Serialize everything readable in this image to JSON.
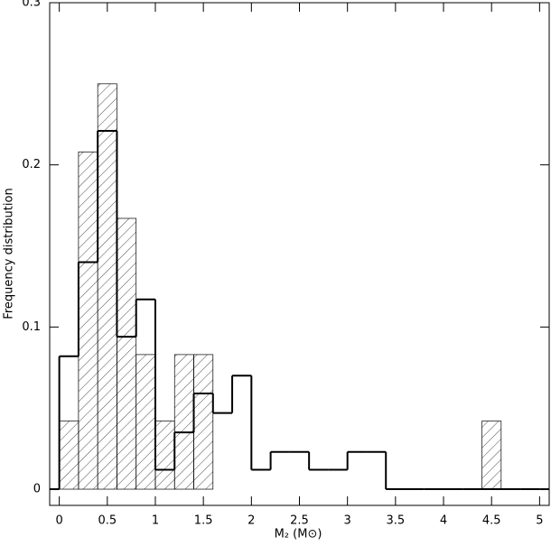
{
  "chart_data": {
    "type": "histogram",
    "xlabel": "M₂ (M⊙)",
    "ylabel": "Frequency distribution",
    "bins": [
      0,
      0.2,
      0.4,
      0.6,
      0.8,
      1.0,
      1.2,
      1.4,
      1.6,
      1.8,
      2.0,
      2.2,
      2.4,
      2.6,
      2.8,
      3.0,
      3.2,
      3.4,
      3.6,
      3.8,
      4.0,
      4.2,
      4.4,
      4.6,
      4.8,
      5.0
    ],
    "series": [
      {
        "style": "hatched",
        "color": "#000000",
        "values": [
          0.042,
          0.208,
          0.25,
          0.167,
          0.083,
          0.042,
          0.083,
          0.083,
          0,
          0,
          0,
          0,
          0,
          0,
          0,
          0,
          0,
          0,
          0,
          0,
          0,
          0,
          0.042,
          0,
          0
        ]
      },
      {
        "style": "step",
        "color": "#000000",
        "values": [
          0.082,
          0.14,
          0.221,
          0.094,
          0.117,
          0.012,
          0.035,
          0.059,
          0.047,
          0.07,
          0.012,
          0.023,
          0.023,
          0.012,
          0.012,
          0.023,
          0.023,
          0,
          0,
          0,
          0,
          0,
          0,
          0,
          0
        ]
      }
    ],
    "xlim": [
      -0.1,
      5.1
    ],
    "ylim": [
      -0.01,
      0.3
    ],
    "xticks": [
      0,
      0.5,
      1,
      1.5,
      2,
      2.5,
      3,
      3.5,
      4,
      4.5,
      5
    ],
    "yticks": [
      0,
      0.1,
      0.2,
      0.3
    ]
  }
}
